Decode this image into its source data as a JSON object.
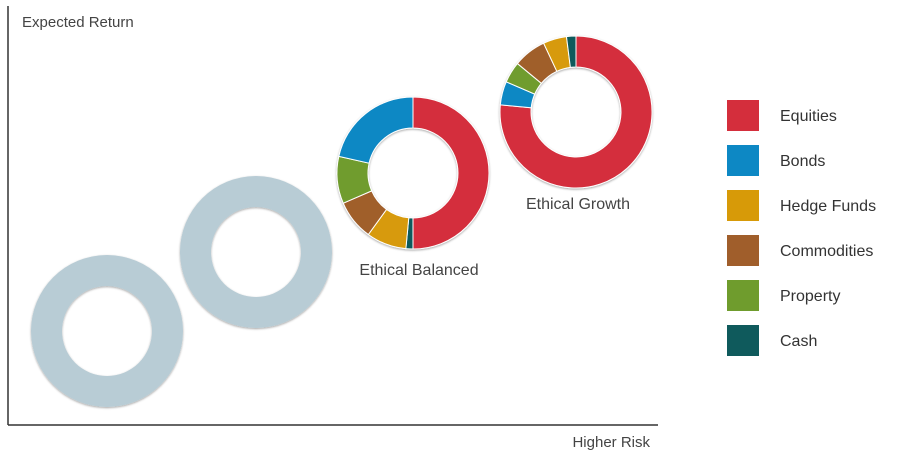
{
  "chart_data": {
    "type": "donut-scatter",
    "title": "",
    "ylabel": "Expected Return",
    "xlabel": "Higher Risk",
    "grid": false,
    "legend_position": "right",
    "categories": [
      "Equities",
      "Bonds",
      "Hedge Funds",
      "Commodities",
      "Property",
      "Cash"
    ],
    "colors": {
      "Equities": "#d42e3c",
      "Bonds": "#0d88c4",
      "Hedge Funds": "#d79a08",
      "Commodities": "#a05e2b",
      "Property": "#6f9c2d",
      "Cash": "#0f5a5c",
      "placeholder": "#b8ccd5"
    },
    "series": [
      {
        "name": "",
        "risk_rank": 1,
        "return_rank": 1,
        "placeholder": true,
        "values": []
      },
      {
        "name": "",
        "risk_rank": 2,
        "return_rank": 2,
        "placeholder": true,
        "values": []
      },
      {
        "name": "Ethical Balanced",
        "risk_rank": 3,
        "return_rank": 3,
        "placeholder": false,
        "values": [
          {
            "category": "Equities",
            "share": 0.5
          },
          {
            "category": "Cash",
            "share": 0.015
          },
          {
            "category": "Hedge Funds",
            "share": 0.085
          },
          {
            "category": "Commodities",
            "share": 0.085
          },
          {
            "category": "Property",
            "share": 0.1
          },
          {
            "category": "Bonds",
            "share": 0.215
          }
        ]
      },
      {
        "name": "Ethical Growth",
        "risk_rank": 4,
        "return_rank": 4,
        "placeholder": false,
        "values": [
          {
            "category": "Equities",
            "share": 0.765
          },
          {
            "category": "Bonds",
            "share": 0.05
          },
          {
            "category": "Property",
            "share": 0.045
          },
          {
            "category": "Commodities",
            "share": 0.07
          },
          {
            "category": "Hedge Funds",
            "share": 0.05
          },
          {
            "category": "Cash",
            "share": 0.02
          }
        ]
      }
    ]
  }
}
